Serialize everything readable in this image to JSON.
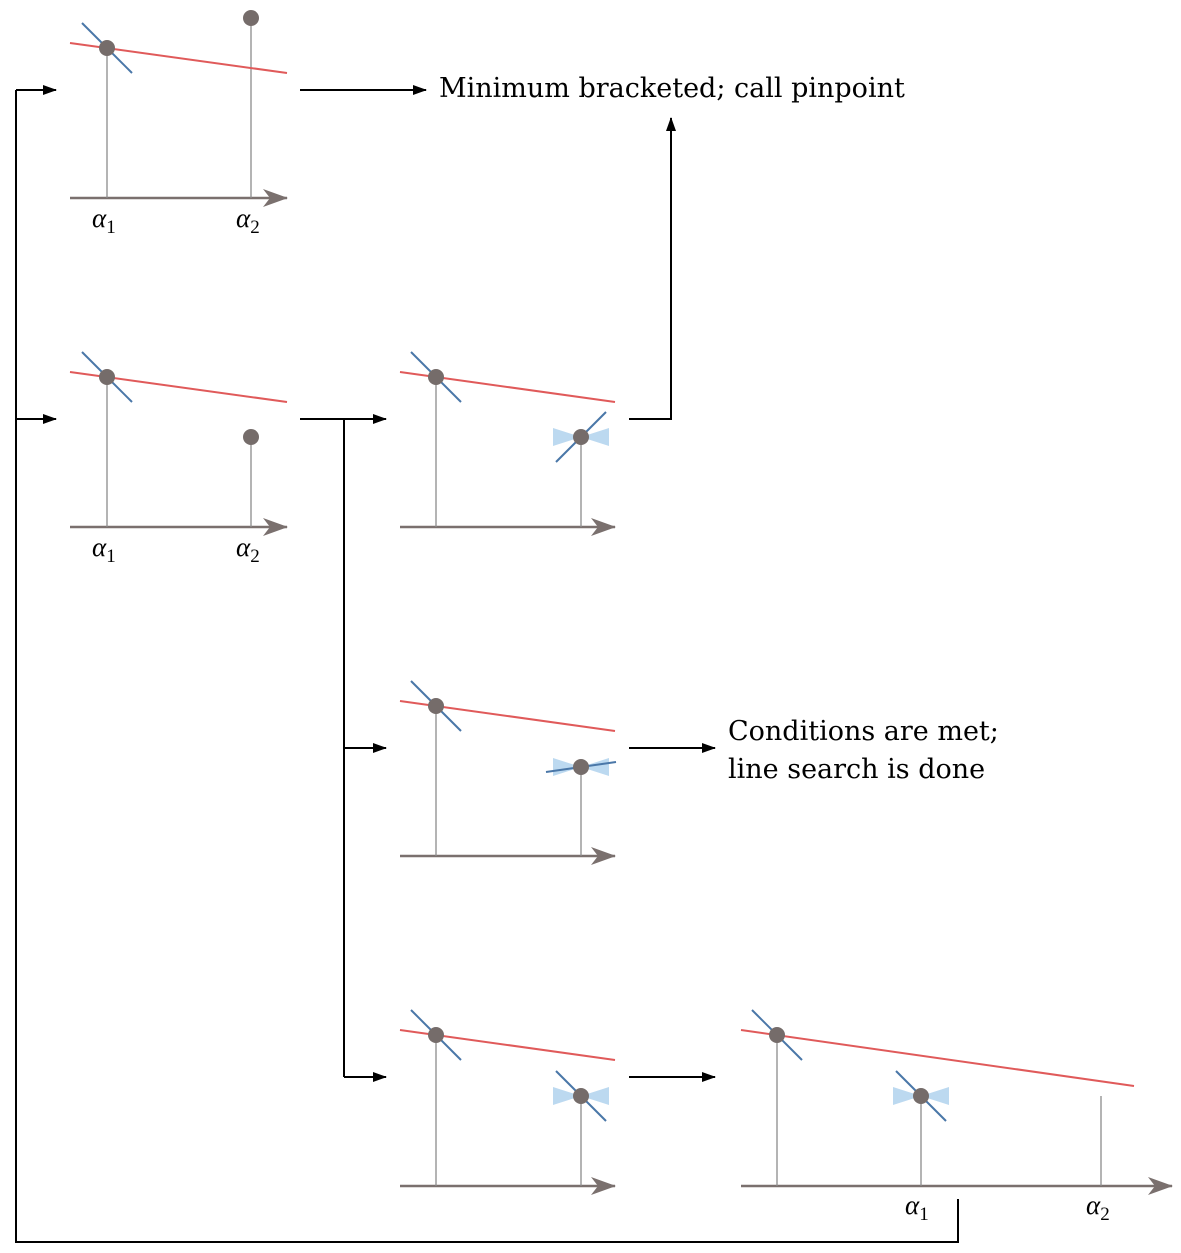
{
  "captions": {
    "bracketed": "Minimum bracketed; call pinpoint",
    "conditions_line1": "Conditions are met;",
    "conditions_line2": "line search is done"
  },
  "labels": {
    "alpha": "α",
    "sub1": "1",
    "sub2": "2"
  },
  "colors": {
    "axis": "#7a706e",
    "stem": "#8c8c8c",
    "point": "#756c6a",
    "sufficient_decrease_line": "#e05a5a",
    "slope": "#4a77a8",
    "curvature_cone": "#bcd9f0",
    "arrow": "#000000"
  }
}
